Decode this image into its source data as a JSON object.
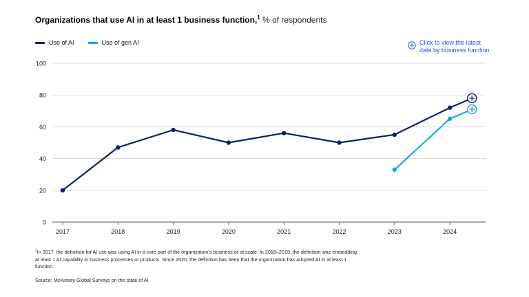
{
  "title": {
    "main": "Organizations that use AI in at least 1 business function,",
    "sup": "1",
    "sub": "% of respondents"
  },
  "cta": {
    "line1": "Click to view the latest",
    "line2": "data by business function",
    "icon": "plus-circle-icon",
    "color": "#2251ff"
  },
  "colors": {
    "ai": "#0b1f6e",
    "genai": "#18a7e0",
    "grid": "#cfcfcf",
    "axis": "#555555"
  },
  "chart_data": {
    "type": "line",
    "x": [
      "2017",
      "2018",
      "2019",
      "2020",
      "2021",
      "2022",
      "2023",
      "2024"
    ],
    "ylim": [
      0,
      100
    ],
    "yticks": [
      0,
      20,
      40,
      60,
      80,
      100
    ],
    "grid": true,
    "legend": "top-left",
    "series": [
      {
        "name": "Use of AI",
        "key": "ai",
        "points": [
          {
            "x": 2017,
            "y": 20
          },
          {
            "x": 2018,
            "y": 47
          },
          {
            "x": 2019,
            "y": 58
          },
          {
            "x": 2020,
            "y": 50
          },
          {
            "x": 2021,
            "y": 56
          },
          {
            "x": 2022,
            "y": 50
          },
          {
            "x": 2023,
            "y": 55
          },
          {
            "x": 2024,
            "y": 72
          },
          {
            "x": 2024.4,
            "y": 78,
            "end_marker": "plus-circle-icon"
          }
        ]
      },
      {
        "name": "Use of gen AI",
        "key": "genai",
        "points": [
          {
            "x": 2023,
            "y": 33
          },
          {
            "x": 2024,
            "y": 65
          },
          {
            "x": 2024.4,
            "y": 71,
            "end_marker": "plus-circle-icon"
          }
        ]
      }
    ]
  },
  "footnote": {
    "sup": "1",
    "text": "In 2017, the definition for AI use was using AI in a core part of the organization’s business or at scale. In 2018–2019, the definition was embedding at least 1 AI capability in business processes or products. Since 2020, the definition has been that the organization has adopted AI in at least 1 function."
  },
  "source": "Source: McKinsey Global Surveys on the state of AI"
}
